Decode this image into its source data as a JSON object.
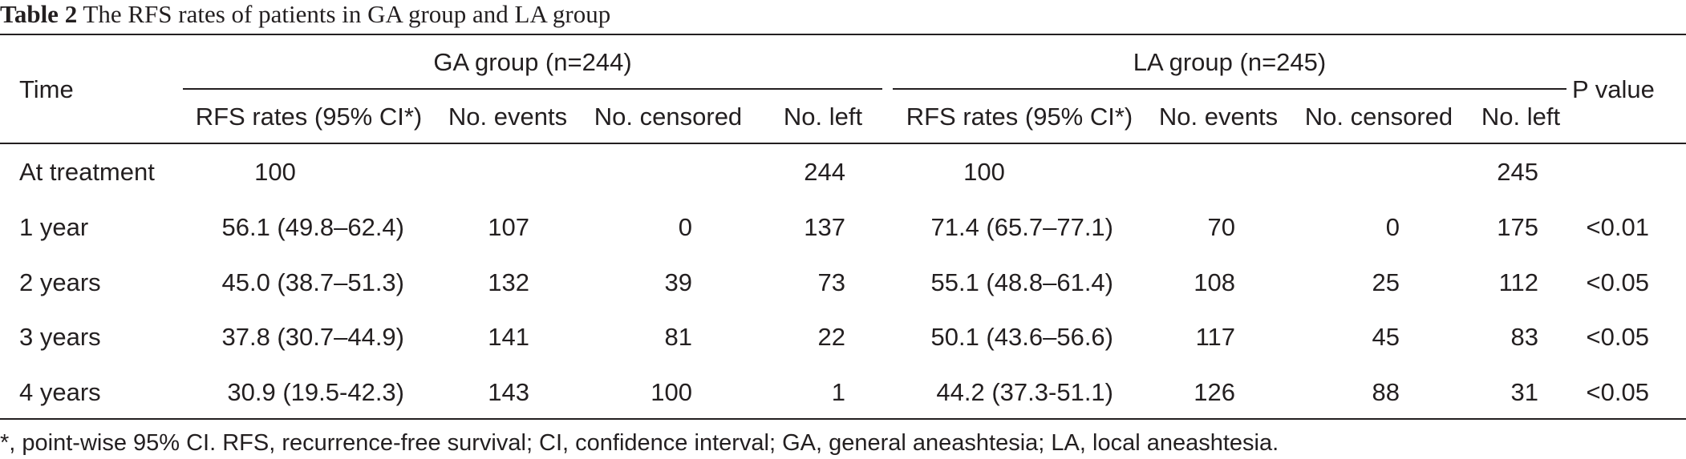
{
  "caption": {
    "label": "Table 2",
    "title": "The RFS rates of patients in GA group and LA group"
  },
  "header": {
    "time": "Time",
    "ga_group": "GA group (n=244)",
    "la_group": "LA group (n=245)",
    "p_value": "P value",
    "ga_cols": [
      "RFS rates (95% CI*)",
      "No. events",
      "No. censored",
      "No. left"
    ],
    "la_cols": [
      "RFS rates (95% CI*)",
      "No. events",
      "No. censored",
      "No. left"
    ]
  },
  "rows": [
    {
      "time": "At treatment",
      "ga": [
        "100",
        "",
        "",
        "244"
      ],
      "la": [
        "100",
        "",
        "",
        "245"
      ],
      "p": ""
    },
    {
      "time": "1 year",
      "ga": [
        "56.1 (49.8–62.4)",
        "107",
        "0",
        "137"
      ],
      "la": [
        "71.4 (65.7–77.1)",
        "70",
        "0",
        "175"
      ],
      "p": "<0.01"
    },
    {
      "time": "2 years",
      "ga": [
        "45.0 (38.7–51.3)",
        "132",
        "39",
        "73"
      ],
      "la": [
        "55.1 (48.8–61.4)",
        "108",
        "25",
        "112"
      ],
      "p": "<0.05"
    },
    {
      "time": "3 years",
      "ga": [
        "37.8 (30.7–44.9)",
        "141",
        "81",
        "22"
      ],
      "la": [
        "50.1 (43.6–56.6)",
        "117",
        "45",
        "83"
      ],
      "p": "<0.05"
    },
    {
      "time": "4 years",
      "ga": [
        "30.9 (19.5-42.3)",
        "143",
        "100",
        "1"
      ],
      "la": [
        "44.2 (37.3-51.1)",
        "126",
        "88",
        "31"
      ],
      "p": "<0.05"
    }
  ],
  "footnote": "*, point-wise 95% CI. RFS, recurrence-free survival; CI, confidence interval; GA, general aneashtesia; LA, local aneashtesia."
}
